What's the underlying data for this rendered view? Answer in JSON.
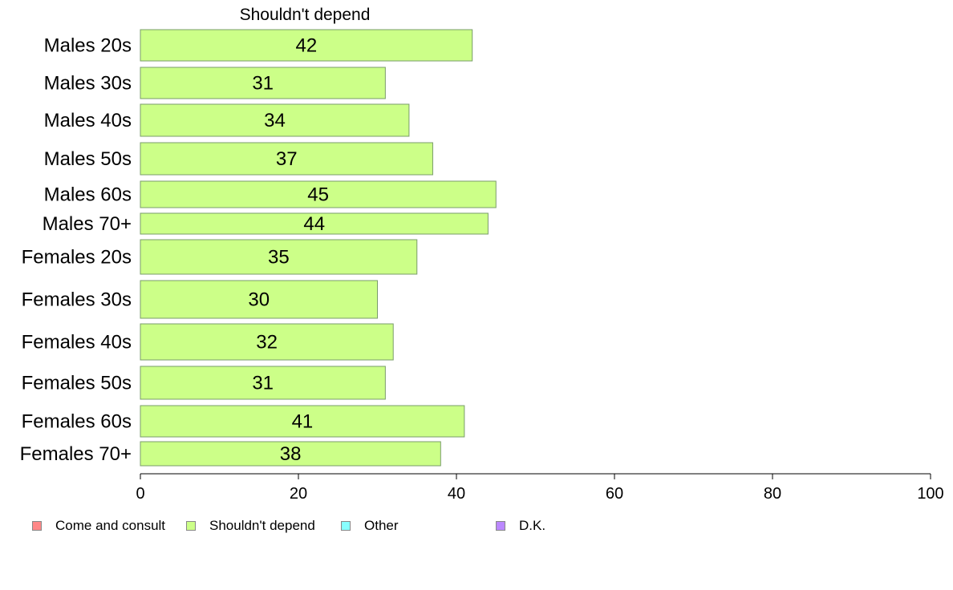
{
  "chart_data": {
    "type": "bar",
    "orientation": "horizontal",
    "title": "Shouldn't depend",
    "categories": [
      "Males 20s",
      "Males 30s",
      "Males 40s",
      "Males 50s",
      "Males 60s",
      "Males 70+",
      "Females 20s",
      "Females 30s",
      "Females 40s",
      "Females 50s",
      "Females 60s",
      "Females 70+"
    ],
    "series": [
      {
        "name": "Shouldn't depend",
        "values": [
          42,
          31,
          34,
          37,
          45,
          44,
          35,
          30,
          32,
          31,
          41,
          38
        ],
        "color": "#ccff88"
      }
    ],
    "xlim": [
      0,
      100
    ],
    "xticks": [
      "0",
      "20",
      "40",
      "60",
      "80",
      "100"
    ],
    "grid": false,
    "legend_position": "bottom-left",
    "legend": [
      {
        "label": "Come and consult",
        "color": "#ff8888"
      },
      {
        "label": "Shouldn't depend",
        "color": "#ccff88"
      },
      {
        "label": "Other",
        "color": "#88ffff"
      },
      {
        "label": "D.K.",
        "color": "#bb88ff"
      }
    ]
  }
}
